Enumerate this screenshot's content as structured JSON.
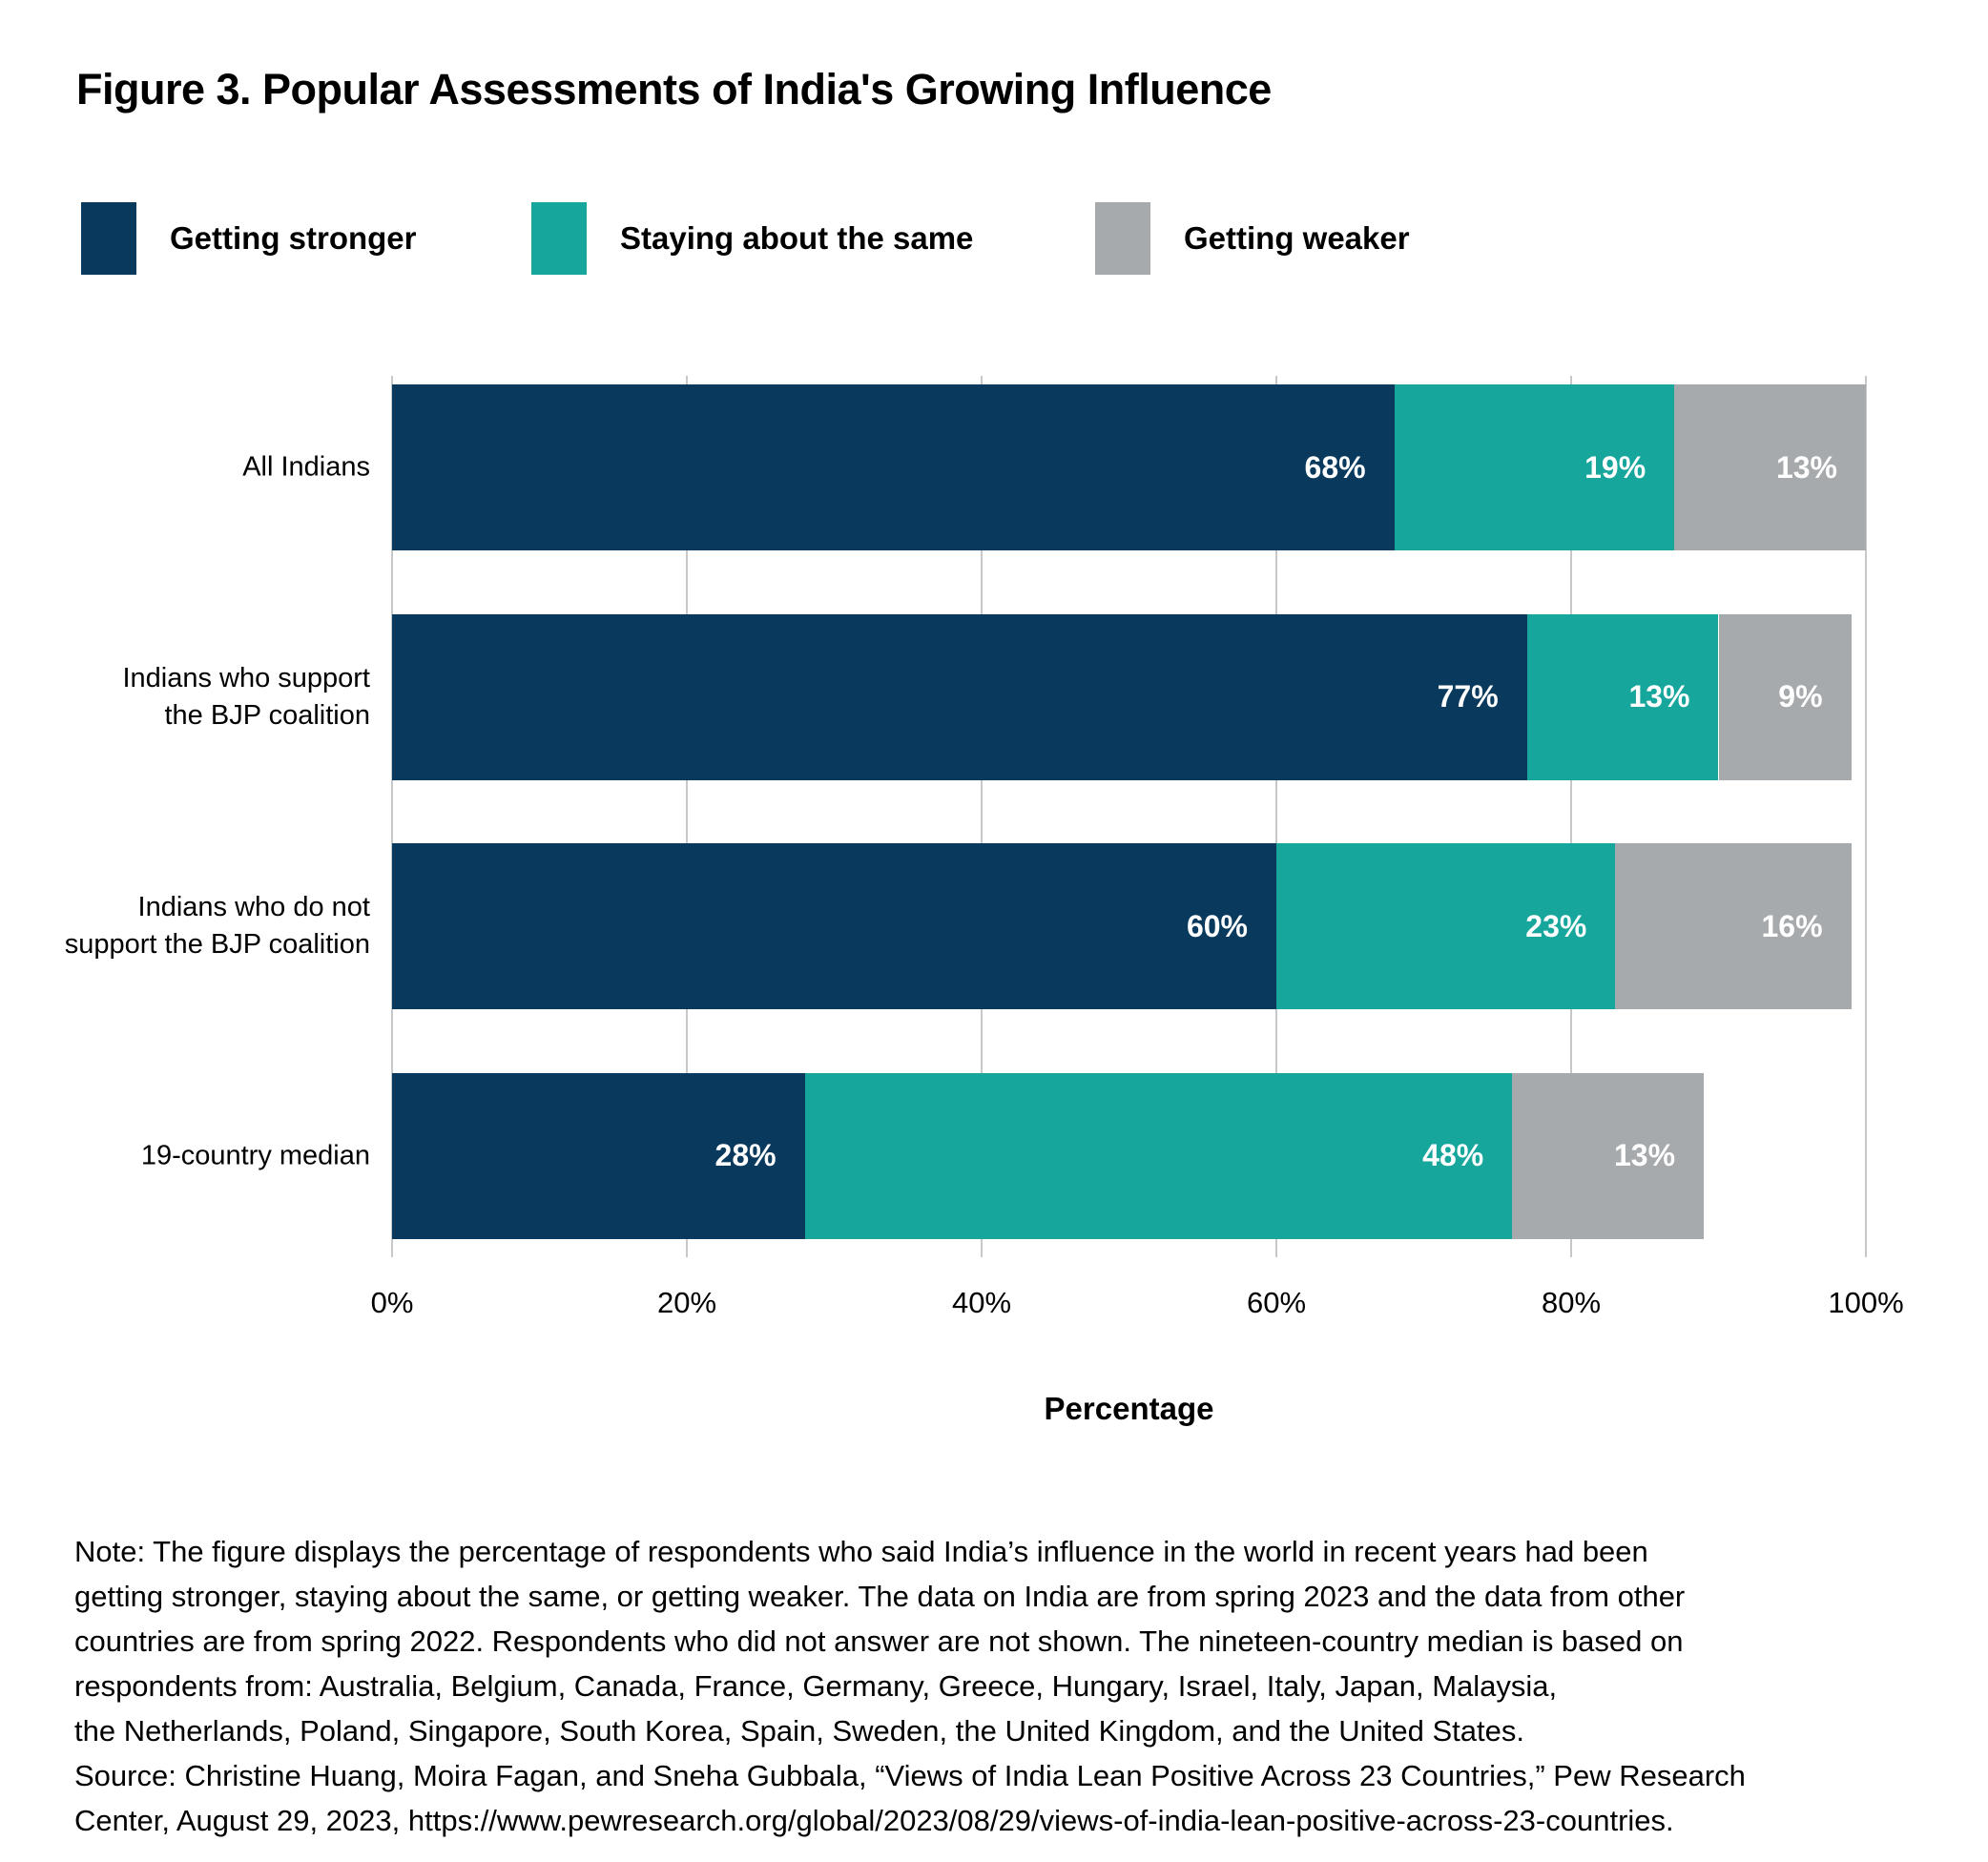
{
  "title": "Figure 3. Popular Assessments of India's Growing Influence",
  "legend": {
    "items": [
      {
        "label": "Getting stronger",
        "color": "#093a5e"
      },
      {
        "label": "Staying about the same",
        "color": "#16a69c"
      },
      {
        "label": "Getting weaker",
        "color": "#a7aaac"
      }
    ]
  },
  "chart_data": {
    "type": "bar",
    "orientation": "horizontal",
    "stacked": true,
    "title": "Figure 3. Popular Assessments of India's Growing Influence",
    "categories": [
      "All Indians",
      "Indians who support the BJP coalition",
      "Indians who do not support the BJP coalition",
      "19-country median"
    ],
    "category_label_lines": [
      [
        "All Indians"
      ],
      [
        "Indians who support",
        "the BJP coalition"
      ],
      [
        "Indians who do not",
        "support the BJP coalition"
      ],
      [
        "19-country median"
      ]
    ],
    "series": [
      {
        "name": "Getting stronger",
        "color": "#093a5e",
        "values": [
          68,
          77,
          60,
          28
        ]
      },
      {
        "name": "Staying about the same",
        "color": "#16a69c",
        "values": [
          19,
          13,
          23,
          48
        ]
      },
      {
        "name": "Getting weaker",
        "color": "#a7aaac",
        "values": [
          13,
          9,
          16,
          13
        ]
      }
    ],
    "data_label_suffix": "%",
    "xlabel": "Percentage",
    "x_ticks": [
      "0%",
      "20%",
      "40%",
      "60%",
      "80%",
      "100%"
    ],
    "x_tick_values": [
      0,
      20,
      40,
      60,
      80,
      100
    ],
    "xlim": [
      0,
      100
    ],
    "grid": true,
    "legend_position": "top",
    "bar_label_color": "#ffffff"
  },
  "note": {
    "lines": [
      "Note: The figure displays the percentage of respondents who said India’s influence in the world in recent years had been",
      "getting stronger, staying about the same, or getting weaker. The data on India are from spring 2023 and the data from other",
      "countries are from spring 2022. Respondents who did not answer are not shown. The nineteen-country median is based on",
      "respondents from: Australia, Belgium, Canada, France, Germany, Greece, Hungary, Israel, Italy, Japan, Malaysia,",
      "the Netherlands, Poland, Singapore, South Korea, Spain, Sweden, the United Kingdom, and the United States.",
      "Source: Christine Huang, Moira Fagan, and Sneha Gubbala, “Views of India Lean Positive Across 23 Countries,” Pew Research",
      "Center, August 29, 2023, https://www.pewresearch.org/global/2023/08/29/views-of-india-lean-positive-across-23-countries."
    ]
  },
  "colors": {
    "getting_stronger": "#093a5e",
    "staying_same": "#16a69c",
    "getting_weaker": "#a7aaac",
    "gridline": "#c6c8ca",
    "bar_label": "#ffffff",
    "text": "#000000"
  }
}
